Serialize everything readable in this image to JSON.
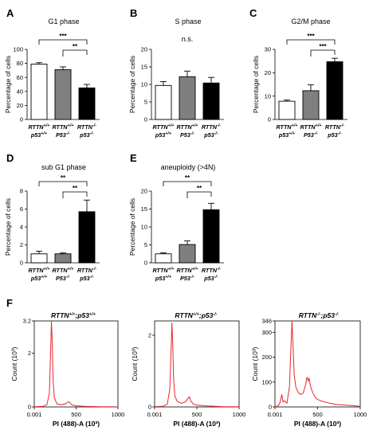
{
  "colors": {
    "wt": "#ffffff",
    "p53": "#7f7f7f",
    "dko": "#000000",
    "flow": "#e8262c",
    "axis": "#000000"
  },
  "genotype_labels": [
    {
      "line1": "RTTN+/+",
      "line2": "p53+/+"
    },
    {
      "line1": "RTTN+/+",
      "line2": "P53-/-"
    },
    {
      "line1": "RTTN-/-",
      "line2": "p53-/-"
    }
  ],
  "ylabel_bar": "Percentage of cells",
  "chart_data": [
    {
      "panel": "A",
      "type": "bar",
      "title": "G1 phase",
      "ylabel": "Percentage of cells",
      "categories": [
        "RTTN+/+ p53+/+",
        "RTTN+/+ P53-/-",
        "RTTN-/- p53-/-"
      ],
      "values": [
        79,
        71,
        45
      ],
      "errors": [
        2,
        4,
        5
      ],
      "ylim": [
        0,
        100
      ],
      "yticks": [
        "0",
        "20",
        "40",
        "60",
        "80",
        "100"
      ],
      "significance": [
        {
          "from": 0,
          "to": 2,
          "label": "***"
        },
        {
          "from": 1,
          "to": 2,
          "label": "**"
        }
      ]
    },
    {
      "panel": "B",
      "type": "bar",
      "title": "S phase",
      "ylabel": "Percentage of cells",
      "categories": [
        "RTTN+/+ p53+/+",
        "RTTN+/+ P53-/-",
        "RTTN-/- p53-/-"
      ],
      "values": [
        9.7,
        12.2,
        10.4
      ],
      "errors": [
        1.1,
        1.6,
        1.6
      ],
      "ylim": [
        0,
        20
      ],
      "yticks": [
        "0",
        "5",
        "10",
        "15",
        "20"
      ],
      "significance": [
        {
          "from": 0,
          "to": 2,
          "label": "n.s.",
          "plain": true
        }
      ]
    },
    {
      "panel": "C",
      "type": "bar",
      "title": "G2/M phase",
      "ylabel": "Percentage of cells",
      "categories": [
        "RTTN+/+ p53+/+",
        "RTTN+/+ P53-/-",
        "RTTN-/- p53-/-"
      ],
      "values": [
        7.8,
        12.3,
        24.7
      ],
      "errors": [
        0.5,
        2.5,
        1.5
      ],
      "ylim": [
        0,
        30
      ],
      "yticks": [
        "0",
        "10",
        "20",
        "30"
      ],
      "significance": [
        {
          "from": 0,
          "to": 2,
          "label": "***"
        },
        {
          "from": 1,
          "to": 2,
          "label": "***"
        }
      ]
    },
    {
      "panel": "D",
      "type": "bar",
      "title": "sub G1 phase",
      "ylabel": "Percentage of cells",
      "categories": [
        "RTTN+/+ p53+/+",
        "RTTN+/+ P53-/-",
        "RTTN-/- p53-/-"
      ],
      "values": [
        1.0,
        1.0,
        5.7
      ],
      "errors": [
        0.3,
        0.1,
        1.3
      ],
      "ylim": [
        0,
        8
      ],
      "yticks": [
        "0",
        "2",
        "4",
        "6",
        "8"
      ],
      "significance": [
        {
          "from": 0,
          "to": 2,
          "label": "**"
        },
        {
          "from": 1,
          "to": 2,
          "label": "**"
        }
      ]
    },
    {
      "panel": "E",
      "type": "bar",
      "title": "aneuploidy (>4N)",
      "ylabel": "Percentage of cells",
      "categories": [
        "RTTN+/+ p53+/+",
        "RTTN+/+ P53-/-",
        "RTTN-/- p53-/-"
      ],
      "values": [
        2.5,
        5.1,
        14.8
      ],
      "errors": [
        0.3,
        1.0,
        1.8
      ],
      "ylim": [
        0,
        20
      ],
      "yticks": [
        "0",
        "5",
        "10",
        "15",
        "20"
      ],
      "significance": [
        {
          "from": 0,
          "to": 2,
          "label": "**"
        },
        {
          "from": 1,
          "to": 2,
          "label": "**"
        }
      ]
    },
    {
      "panel": "F1",
      "type": "line",
      "title": "RTTN+/+;p53+/+",
      "xlabel": "PI (488)-A (10³)",
      "ylabel": "Count (10³)",
      "xlim": [
        0,
        1000
      ],
      "xticks": [
        "0.001",
        "500",
        "1000"
      ],
      "ylim": [
        0,
        3.2
      ],
      "yticks": [
        "0",
        "2",
        "3.2"
      ],
      "x": [
        0,
        100,
        150,
        180,
        195,
        205,
        215,
        225,
        240,
        270,
        320,
        380,
        410,
        430,
        450,
        500,
        600,
        700,
        800,
        900,
        1000
      ],
      "y": [
        0.01,
        0.02,
        0.08,
        0.5,
        2.0,
        3.2,
        2.4,
        1.0,
        0.35,
        0.12,
        0.08,
        0.12,
        0.2,
        0.14,
        0.07,
        0.04,
        0.02,
        0.015,
        0.01,
        0.005,
        0.003
      ]
    },
    {
      "panel": "F2",
      "type": "line",
      "title": "RTTN+/+;p53-/-",
      "xlabel": "PI (488)-A (10³)",
      "ylabel": "Count (10³)",
      "xlim": [
        0,
        1000
      ],
      "xticks": [
        "0.001",
        "500",
        "1000"
      ],
      "ylim": [
        0,
        2.4
      ],
      "yticks": [
        "0",
        "2"
      ],
      "x": [
        0,
        100,
        150,
        180,
        195,
        205,
        215,
        225,
        240,
        270,
        320,
        370,
        390,
        410,
        430,
        460,
        500,
        600,
        700,
        800,
        1000
      ],
      "y": [
        0.01,
        0.02,
        0.08,
        0.5,
        1.6,
        2.35,
        1.7,
        0.8,
        0.3,
        0.15,
        0.1,
        0.15,
        0.22,
        0.28,
        0.16,
        0.08,
        0.05,
        0.03,
        0.02,
        0.01,
        0.005
      ]
    },
    {
      "panel": "F3",
      "type": "line",
      "title": "RTTN-/-;p53-/-",
      "xlabel": "PI (488)-A (10³)",
      "ylabel": "Count (10³)",
      "xlim": [
        0,
        1000
      ],
      "xticks": [
        "0.001",
        "500",
        "1000"
      ],
      "ylim": [
        0,
        346
      ],
      "yticks": [
        "0",
        "100",
        "200",
        "300",
        "346"
      ],
      "x": [
        0,
        40,
        60,
        80,
        95,
        110,
        140,
        170,
        185,
        200,
        210,
        225,
        245,
        270,
        300,
        330,
        360,
        375,
        390,
        400,
        420,
        440,
        470,
        500,
        560,
        640,
        720,
        800,
        880,
        950,
        1000
      ],
      "y": [
        0,
        5,
        18,
        50,
        20,
        25,
        15,
        80,
        220,
        346,
        260,
        130,
        80,
        60,
        50,
        55,
        90,
        120,
        105,
        115,
        80,
        60,
        40,
        30,
        22,
        15,
        10,
        8,
        6,
        4,
        2
      ]
    }
  ]
}
